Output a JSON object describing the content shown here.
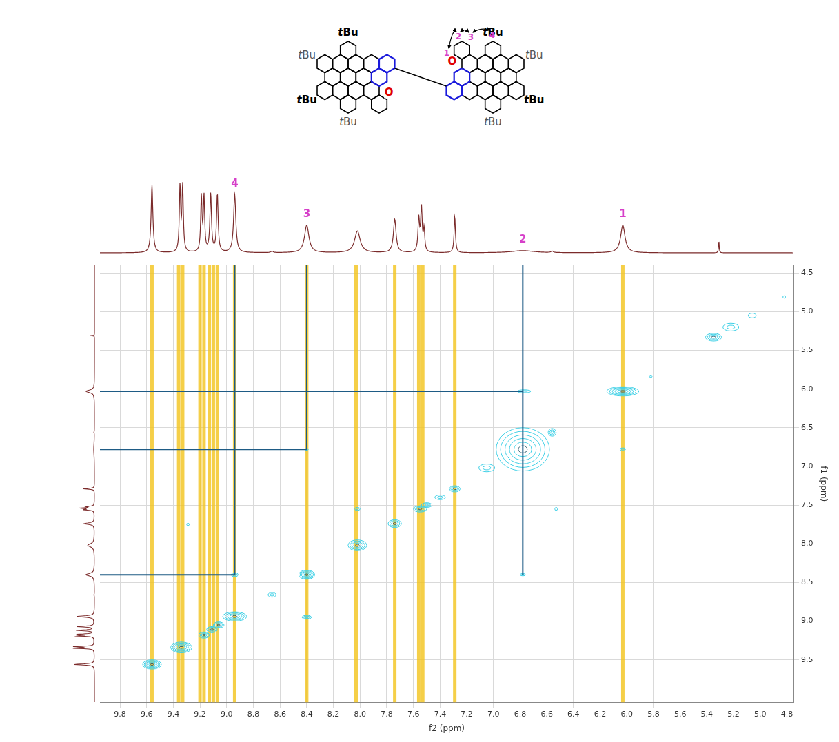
{
  "structure": {
    "substituent": "tBu",
    "heteroatom": "O",
    "positions": [
      "1",
      "2",
      "3",
      "4"
    ]
  },
  "chart_data": {
    "type": "scatter",
    "x_label": "f2 (ppm)",
    "y_label": "f1 (ppm)",
    "xlim": [
      9.95,
      4.75
    ],
    "xticks": [
      9.8,
      9.6,
      9.4,
      9.2,
      {
        "value": 9,
        "label": "9.0"
      },
      8.8,
      8.6,
      8.4,
      8.2,
      {
        "value": 8,
        "label": "8.0"
      },
      7.8,
      7.6,
      7.4,
      7.2,
      {
        "value": 7,
        "label": "7.0"
      },
      6.8,
      6.6,
      6.4,
      6.2,
      {
        "value": 6,
        "label": "6.0"
      },
      5.8,
      5.6,
      5.4,
      5.2,
      {
        "value": 5,
        "label": "5.0"
      },
      4.8
    ],
    "ylim": [
      10.05,
      4.4
    ],
    "yticks": [
      4.5,
      {
        "value": 5,
        "label": "5.0"
      },
      5.5,
      {
        "value": 6,
        "label": "6.0"
      },
      6.5,
      {
        "value": 7,
        "label": "7.0"
      },
      7.5,
      {
        "value": 8,
        "label": "8.0"
      },
      8.5,
      {
        "value": 9,
        "label": "9.0"
      },
      9.5
    ],
    "grid": true,
    "spectrum_1d": {
      "color": "#7b2b2b",
      "peaks": [
        {
          "shift": 9.56,
          "height": 0.93,
          "width": 0.008
        },
        {
          "shift": 9.35,
          "height": 0.9,
          "width": 0.006
        },
        {
          "shift": 9.33,
          "height": 0.9,
          "width": 0.006
        },
        {
          "shift": 9.19,
          "height": 0.75,
          "width": 0.006
        },
        {
          "shift": 9.17,
          "height": 0.75,
          "width": 0.006
        },
        {
          "shift": 9.12,
          "height": 0.8,
          "width": 0.007
        },
        {
          "shift": 9.07,
          "height": 0.8,
          "width": 0.007
        },
        {
          "shift": 8.94,
          "height": 0.8,
          "width": 0.01
        },
        {
          "shift": 8.66,
          "height": 0.02,
          "width": 0.01
        },
        {
          "shift": 8.4,
          "height": 0.38,
          "width": 0.02
        },
        {
          "shift": 8.02,
          "height": 0.3,
          "width": 0.025
        },
        {
          "shift": 7.74,
          "height": 0.46,
          "width": 0.012
        },
        {
          "shift": 7.56,
          "height": 0.45,
          "width": 0.007
        },
        {
          "shift": 7.54,
          "height": 0.6,
          "width": 0.007
        },
        {
          "shift": 7.52,
          "height": 0.3,
          "width": 0.006
        },
        {
          "shift": 7.29,
          "height": 0.5,
          "width": 0.006
        },
        {
          "shift": 6.78,
          "height": 0.03,
          "width": 0.1
        },
        {
          "shift": 6.56,
          "height": 0.02,
          "width": 0.01
        },
        {
          "shift": 6.03,
          "height": 0.38,
          "width": 0.02
        },
        {
          "shift": 5.31,
          "height": 0.17,
          "width": 0.003
        }
      ]
    },
    "peak_labels": {
      "color": "#d63fc9",
      "items": [
        {
          "label": "4",
          "shift": 8.94
        },
        {
          "label": "3",
          "shift": 8.4
        },
        {
          "label": "2",
          "shift": 6.78
        },
        {
          "label": "1",
          "shift": 6.03
        }
      ]
    },
    "t1_noise": {
      "color": "#f2c31a",
      "x": [
        9.56,
        9.36,
        9.33,
        9.2,
        9.17,
        9.13,
        9.1,
        9.07,
        8.94,
        8.4,
        8.03,
        7.74,
        7.56,
        7.53,
        7.29,
        6.03
      ]
    },
    "cross_peaks": {
      "color": "#3fd0e6",
      "peaks": [
        {
          "x": 9.56,
          "y": 9.56,
          "wx": 0.07,
          "wy": 0.06,
          "levels": 6
        },
        {
          "x": 9.34,
          "y": 9.34,
          "wx": 0.08,
          "wy": 0.07,
          "levels": 6
        },
        {
          "x": 9.17,
          "y": 9.18,
          "wx": 0.04,
          "wy": 0.04,
          "levels": 4
        },
        {
          "x": 9.11,
          "y": 9.11,
          "wx": 0.04,
          "wy": 0.04,
          "levels": 4
        },
        {
          "x": 9.06,
          "y": 9.05,
          "wx": 0.04,
          "wy": 0.04,
          "levels": 4
        },
        {
          "x": 8.94,
          "y": 8.94,
          "wx": 0.09,
          "wy": 0.06,
          "levels": 5
        },
        {
          "x": 8.66,
          "y": 8.66,
          "wx": 0.03,
          "wy": 0.03,
          "levels": 2
        },
        {
          "x": 8.94,
          "y": 8.4,
          "wx": 0.025,
          "wy": 0.025,
          "levels": 3
        },
        {
          "x": 8.4,
          "y": 8.4,
          "wx": 0.06,
          "wy": 0.06,
          "levels": 6
        },
        {
          "x": 8.4,
          "y": 8.95,
          "wx": 0.035,
          "wy": 0.025,
          "levels": 3
        },
        {
          "x": 8.4,
          "y": 6.78,
          "wx": 0.012,
          "wy": 0.012,
          "levels": 2
        },
        {
          "x": 8.02,
          "y": 8.02,
          "wx": 0.07,
          "wy": 0.07,
          "levels": 5
        },
        {
          "x": 8.02,
          "y": 7.55,
          "wx": 0.02,
          "wy": 0.02,
          "levels": 2
        },
        {
          "x": 7.74,
          "y": 7.74,
          "wx": 0.05,
          "wy": 0.05,
          "levels": 4
        },
        {
          "x": 7.55,
          "y": 7.55,
          "wx": 0.05,
          "wy": 0.04,
          "levels": 4
        },
        {
          "x": 7.5,
          "y": 7.5,
          "wx": 0.04,
          "wy": 0.03,
          "levels": 3
        },
        {
          "x": 7.4,
          "y": 7.4,
          "wx": 0.04,
          "wy": 0.03,
          "levels": 2
        },
        {
          "x": 7.29,
          "y": 7.29,
          "wx": 0.04,
          "wy": 0.04,
          "levels": 4
        },
        {
          "x": 7.05,
          "y": 7.02,
          "wx": 0.06,
          "wy": 0.05,
          "levels": 2
        },
        {
          "x": 6.78,
          "y": 6.78,
          "wx": 0.2,
          "wy": 0.28,
          "levels": 6
        },
        {
          "x": 6.56,
          "y": 6.56,
          "wx": 0.03,
          "wy": 0.05,
          "levels": 3
        },
        {
          "x": 6.03,
          "y": 6.03,
          "wx": 0.12,
          "wy": 0.06,
          "levels": 6
        },
        {
          "x": 6.77,
          "y": 6.03,
          "wx": 0.05,
          "wy": 0.02,
          "levels": 2
        },
        {
          "x": 6.03,
          "y": 6.78,
          "wx": 0.02,
          "wy": 0.02,
          "levels": 2
        },
        {
          "x": 6.78,
          "y": 8.4,
          "wx": 0.02,
          "wy": 0.015,
          "levels": 2
        },
        {
          "x": 6.53,
          "y": 7.55,
          "wx": 0.01,
          "wy": 0.02,
          "levels": 1
        },
        {
          "x": 9.29,
          "y": 7.75,
          "wx": 0.01,
          "wy": 0.015,
          "levels": 1
        },
        {
          "x": 5.82,
          "y": 5.84,
          "wx": 0.01,
          "wy": 0.01,
          "levels": 1
        },
        {
          "x": 5.35,
          "y": 5.33,
          "wx": 0.06,
          "wy": 0.05,
          "levels": 4
        },
        {
          "x": 5.22,
          "y": 5.2,
          "wx": 0.06,
          "wy": 0.05,
          "levels": 2
        },
        {
          "x": 5.06,
          "y": 5.05,
          "wx": 0.03,
          "wy": 0.03,
          "levels": 1
        },
        {
          "x": 4.82,
          "y": 4.81,
          "wx": 0.01,
          "wy": 0.015,
          "levels": 1
        }
      ]
    },
    "assignment_lines": {
      "color": "#1e5b85",
      "segments": [
        [
          [
            8.94,
            4.4
          ],
          [
            8.94,
            8.4
          ]
        ],
        [
          [
            9.95,
            8.4
          ],
          [
            8.94,
            8.4
          ]
        ],
        [
          [
            8.4,
            4.4
          ],
          [
            8.4,
            6.78
          ]
        ],
        [
          [
            9.95,
            6.78
          ],
          [
            8.4,
            6.78
          ]
        ],
        [
          [
            6.78,
            4.4
          ],
          [
            6.78,
            8.4
          ]
        ],
        [
          [
            9.95,
            6.03
          ],
          [
            6.78,
            6.03
          ]
        ]
      ]
    }
  }
}
